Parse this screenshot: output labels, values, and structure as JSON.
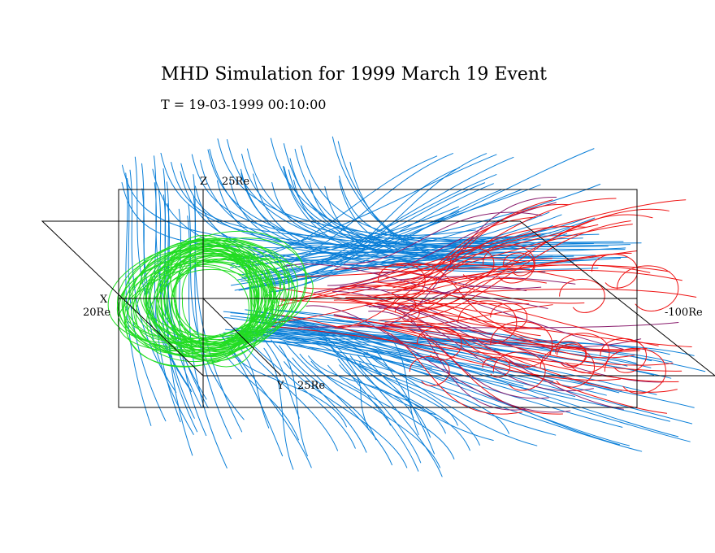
{
  "title": "MHD Simulation for 1999 March 19 Event",
  "timestamp": "T = 19-03-1999  00:10:00",
  "axes": {
    "z_label": "Z",
    "z_extent": "25Re",
    "x_label": "X",
    "x_extent": "20Re",
    "x_tail_extent": "-100Re",
    "y_label": "Y",
    "y_extent": "25Re"
  },
  "colors": {
    "background": "#ffffff",
    "frame": "#000000",
    "open_field_lines": "#0a7fd8",
    "closed_dayside_lines": "#22dd22",
    "tail_field_lines": "#ee1111",
    "tail_field_lines_dark": "#8a1e6e"
  },
  "field_line_groups": [
    {
      "name": "open-field-lines",
      "color": "#0a7fd8"
    },
    {
      "name": "closed-dayside-lines",
      "color": "#22dd22"
    },
    {
      "name": "tail-field-lines",
      "color": "#ee1111"
    }
  ]
}
